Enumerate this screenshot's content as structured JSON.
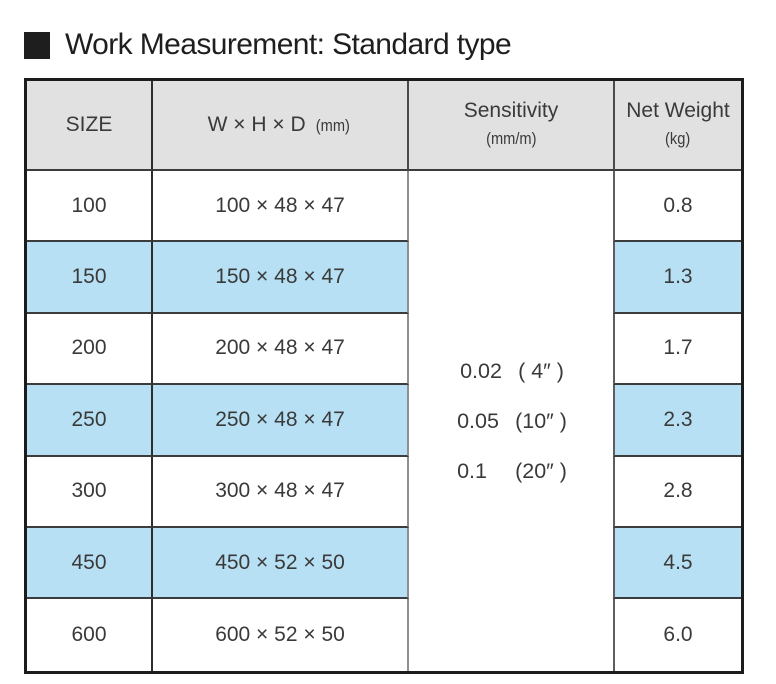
{
  "title": "Work Measurement: Standard type",
  "colors": {
    "highlight_blue": "#b7e0f4",
    "header_gray": "#e1e1e1",
    "border_black": "#1c1c1c",
    "text": "#3a3a3a"
  },
  "table": {
    "headers": {
      "size": "SIZE",
      "dimensions": "W × H × D",
      "dimensions_unit": "(mm)",
      "sensitivity": "Sensitivity",
      "sensitivity_unit": "(mm/m)",
      "net_weight": "Net Weight",
      "net_weight_unit": "(kg)"
    },
    "sensitivity_values": [
      {
        "value": "0.02",
        "seconds": "( 4″ )"
      },
      {
        "value": "0.05",
        "seconds": "(10″ )"
      },
      {
        "value": "0.1",
        "seconds": "(20″ )"
      }
    ],
    "rows": [
      {
        "size": "100",
        "dimensions": "100 × 48 × 47",
        "net_weight": "0.8"
      },
      {
        "size": "150",
        "dimensions": "150 × 48 × 47",
        "net_weight": "1.3"
      },
      {
        "size": "200",
        "dimensions": "200 × 48 × 47",
        "net_weight": "1.7"
      },
      {
        "size": "250",
        "dimensions": "250 × 48 × 47",
        "net_weight": "2.3"
      },
      {
        "size": "300",
        "dimensions": "300 × 48 × 47",
        "net_weight": "2.8"
      },
      {
        "size": "450",
        "dimensions": "450 × 52 × 50",
        "net_weight": "4.5"
      },
      {
        "size": "600",
        "dimensions": "600 × 52 × 50",
        "net_weight": "6.0"
      }
    ]
  }
}
